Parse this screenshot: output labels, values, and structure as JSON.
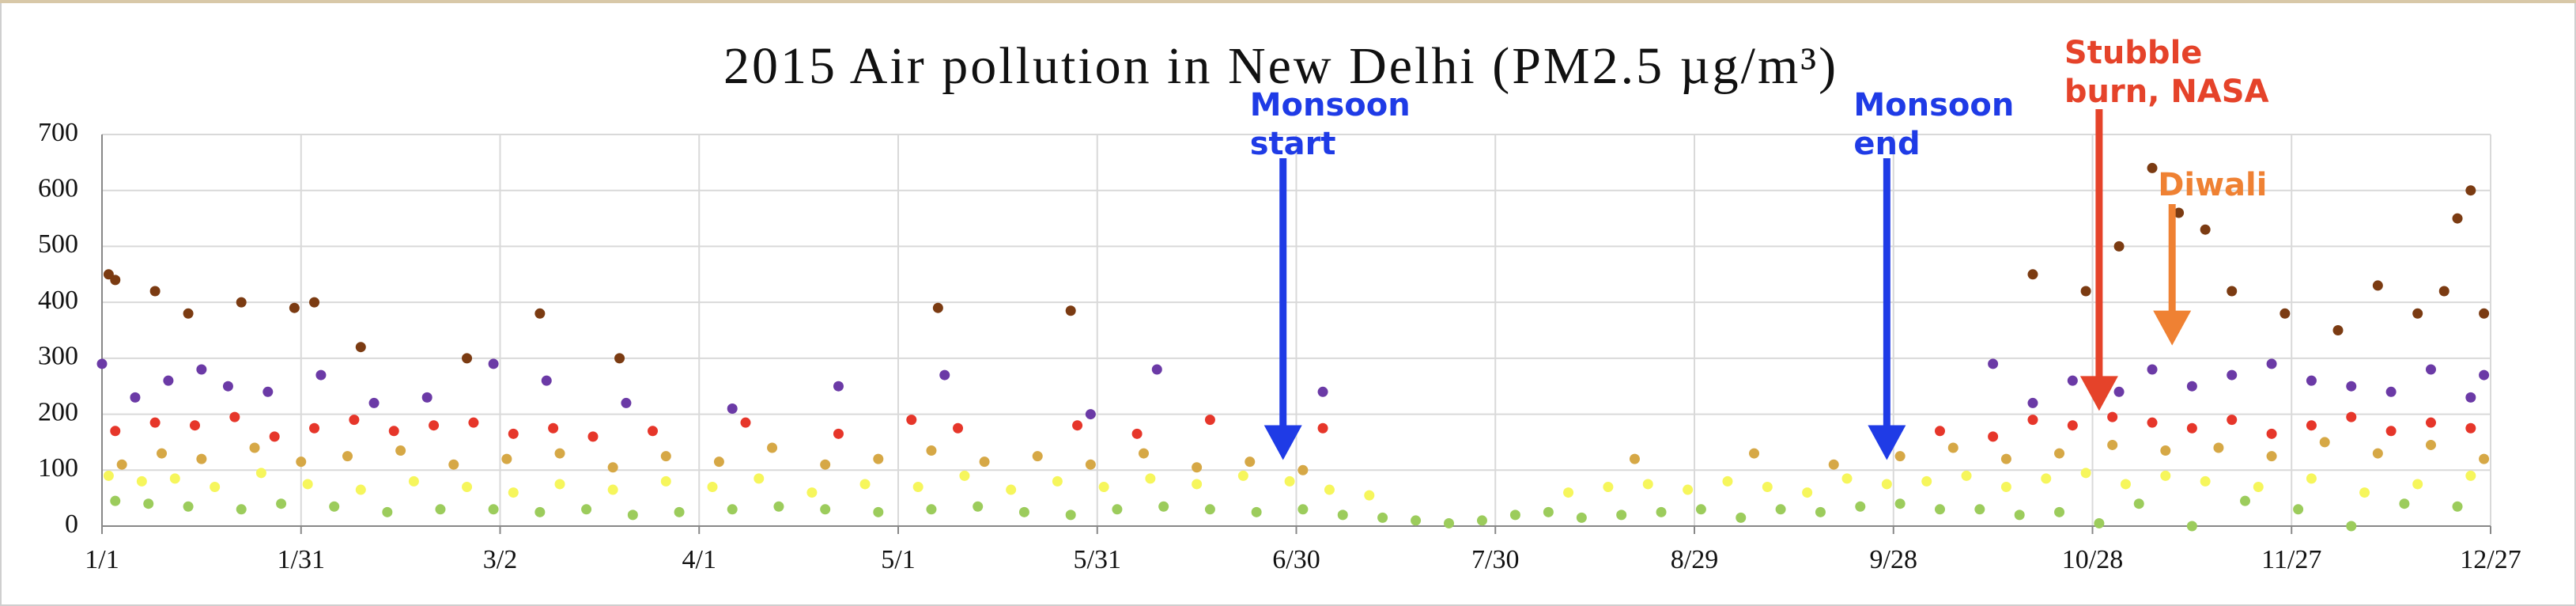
{
  "chart_data": {
    "type": "scatter",
    "title": "2015 Air pollution in New Delhi (PM2.5 µg/m³)",
    "xlim": [
      1,
      361
    ],
    "xticks": [
      {
        "value": 1,
        "label": "1/1"
      },
      {
        "value": 31,
        "label": "1/31"
      },
      {
        "value": 61,
        "label": "3/2"
      },
      {
        "value": 91,
        "label": "4/1"
      },
      {
        "value": 121,
        "label": "5/1"
      },
      {
        "value": 151,
        "label": "5/31"
      },
      {
        "value": 181,
        "label": "6/30"
      },
      {
        "value": 211,
        "label": "7/30"
      },
      {
        "value": 241,
        "label": "8/29"
      },
      {
        "value": 271,
        "label": "9/28"
      },
      {
        "value": 301,
        "label": "10/28"
      },
      {
        "value": 331,
        "label": "11/27"
      },
      {
        "value": 361,
        "label": "12/27"
      }
    ],
    "ylim": [
      0,
      700
    ],
    "yticks": [
      0,
      100,
      200,
      300,
      400,
      500,
      600,
      700
    ],
    "grid": true,
    "series": [
      {
        "color": "#9ccc5c",
        "x": [
          3,
          8,
          14,
          22,
          28,
          36,
          44,
          52,
          60,
          67,
          74,
          81,
          88,
          96,
          103,
          110,
          118,
          126,
          133,
          140,
          147,
          154,
          161,
          168,
          175,
          182,
          188,
          194,
          199,
          204,
          209,
          214,
          219,
          224,
          230,
          236,
          242,
          248,
          254,
          260,
          266,
          272,
          278,
          284,
          290,
          296,
          302,
          308,
          316,
          324,
          332,
          340,
          348,
          356
        ],
        "values": [
          45,
          40,
          35,
          30,
          40,
          35,
          25,
          30,
          30,
          25,
          30,
          20,
          25,
          30,
          35,
          30,
          25,
          30,
          35,
          25,
          20,
          30,
          35,
          30,
          25,
          30,
          20,
          15,
          10,
          5,
          10,
          20,
          25,
          15,
          20,
          25,
          30,
          15,
          30,
          25,
          35,
          40,
          30,
          30,
          20,
          25,
          5,
          40,
          0,
          45,
          30,
          0,
          40,
          35
        ]
      },
      {
        "color": "#f6f65c",
        "x": [
          2,
          7,
          12,
          18,
          25,
          32,
          40,
          48,
          56,
          63,
          70,
          78,
          86,
          93,
          100,
          108,
          116,
          124,
          131,
          138,
          145,
          152,
          159,
          166,
          173,
          180,
          186,
          192,
          222,
          228,
          234,
          240,
          246,
          252,
          258,
          264,
          270,
          276,
          282,
          288,
          294,
          300,
          306,
          312,
          318,
          326,
          334,
          342,
          350,
          358
        ],
        "values": [
          90,
          80,
          85,
          70,
          95,
          75,
          65,
          80,
          70,
          60,
          75,
          65,
          80,
          70,
          85,
          60,
          75,
          70,
          90,
          65,
          80,
          70,
          85,
          75,
          90,
          80,
          65,
          55,
          60,
          70,
          75,
          65,
          80,
          70,
          60,
          85,
          75,
          80,
          90,
          70,
          85,
          95,
          75,
          90,
          80,
          70,
          85,
          60,
          75,
          90
        ]
      },
      {
        "color": "#d6a846",
        "x": [
          4,
          10,
          16,
          24,
          31,
          38,
          46,
          54,
          62,
          70,
          78,
          86,
          94,
          102,
          110,
          118,
          126,
          134,
          142,
          150,
          158,
          166,
          174,
          182,
          232,
          250,
          262,
          272,
          280,
          288,
          296,
          304,
          312,
          320,
          328,
          336,
          344,
          352,
          360
        ],
        "values": [
          110,
          130,
          120,
          140,
          115,
          125,
          135,
          110,
          120,
          130,
          105,
          125,
          115,
          140,
          110,
          120,
          135,
          115,
          125,
          110,
          130,
          105,
          115,
          100,
          120,
          130,
          110,
          125,
          140,
          120,
          130,
          145,
          135,
          140,
          125,
          150,
          130,
          145,
          120
        ]
      },
      {
        "color": "#e6362a",
        "x": [
          3,
          9,
          15,
          21,
          27,
          33,
          39,
          45,
          51,
          57,
          63,
          69,
          75,
          84,
          98,
          112,
          123,
          130,
          148,
          157,
          168,
          185,
          278,
          286,
          292,
          298,
          304,
          310,
          316,
          322,
          328,
          334,
          340,
          346,
          352,
          358
        ],
        "values": [
          170,
          185,
          180,
          195,
          160,
          175,
          190,
          170,
          180,
          185,
          165,
          175,
          160,
          170,
          185,
          165,
          190,
          175,
          180,
          165,
          190,
          175,
          170,
          160,
          190,
          180,
          195,
          185,
          175,
          190,
          165,
          180,
          195,
          170,
          185,
          175
        ]
      },
      {
        "color": "#6b3aa6",
        "x": [
          1,
          6,
          11,
          16,
          20,
          26,
          34,
          42,
          50,
          60,
          68,
          80,
          96,
          112,
          128,
          150,
          160,
          185,
          286,
          292,
          298,
          305,
          310,
          316,
          322,
          328,
          334,
          340,
          346,
          352,
          358,
          360
        ],
        "values": [
          290,
          230,
          260,
          280,
          250,
          240,
          270,
          220,
          230,
          290,
          260,
          220,
          210,
          250,
          270,
          200,
          280,
          240,
          290,
          220,
          260,
          240,
          280,
          250,
          270,
          290,
          260,
          250,
          240,
          280,
          230,
          270
        ]
      },
      {
        "color": "#7b3b12",
        "x": [
          2,
          3,
          9,
          14,
          22,
          30,
          33,
          40,
          56,
          67,
          79,
          127,
          147,
          292,
          300,
          305,
          310,
          314,
          318,
          322,
          330,
          338,
          344,
          350,
          354,
          356,
          358,
          360
        ],
        "values": [
          450,
          440,
          420,
          380,
          400,
          390,
          400,
          320,
          300,
          380,
          300,
          390,
          385,
          450,
          420,
          500,
          640,
          560,
          530,
          420,
          380,
          350,
          430,
          380,
          420,
          550,
          600,
          380
        ]
      }
    ],
    "annotations": [
      {
        "text": [
          "Monsoon",
          "start"
        ],
        "x": 179,
        "y": 118,
        "color": "#1f3be6"
      },
      {
        "text": [
          "Monsoon",
          "end"
        ],
        "x": 270,
        "y": 118,
        "color": "#1f3be6"
      },
      {
        "text": [
          "Stubble",
          "burn, NASA"
        ],
        "x": 302,
        "y": 206,
        "color": "#e5432a"
      },
      {
        "text": [
          "Diwali"
        ],
        "x": 313,
        "y": 323,
        "color": "#ef8133"
      }
    ]
  }
}
